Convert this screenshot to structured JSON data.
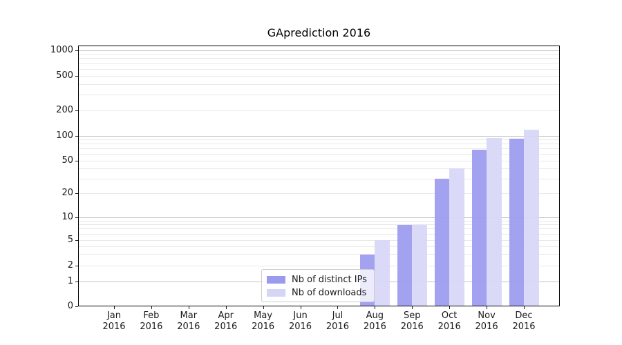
{
  "figure": {
    "background": "#ffffff"
  },
  "chart_data": {
    "type": "bar",
    "title": "GAprediction 2016",
    "x_categories": [
      {
        "month": "Jan",
        "year": "2016"
      },
      {
        "month": "Feb",
        "year": "2016"
      },
      {
        "month": "Mar",
        "year": "2016"
      },
      {
        "month": "Apr",
        "year": "2016"
      },
      {
        "month": "May",
        "year": "2016"
      },
      {
        "month": "Jun",
        "year": "2016"
      },
      {
        "month": "Jul",
        "year": "2016"
      },
      {
        "month": "Aug",
        "year": "2016"
      },
      {
        "month": "Sep",
        "year": "2016"
      },
      {
        "month": "Oct",
        "year": "2016"
      },
      {
        "month": "Nov",
        "year": "2016"
      },
      {
        "month": "Dec",
        "year": "2016"
      }
    ],
    "series": [
      {
        "name": "Nb of distinct IPs",
        "color": "#9b9bef",
        "legend_swatch_color": "#9a9aee",
        "values": [
          0,
          0,
          0,
          0,
          0,
          0,
          0,
          3,
          8,
          30,
          68,
          92
        ]
      },
      {
        "name": "Nb of downloads",
        "color": "#d7d7f8",
        "legend_swatch_color": "#d5d5f5",
        "values": [
          0,
          0,
          0,
          0,
          0,
          0,
          0,
          5,
          8,
          40,
          94,
          118
        ]
      }
    ],
    "y_axis": {
      "scale": "symlog",
      "tick_values": [
        0,
        1,
        2,
        5,
        10,
        20,
        50,
        100,
        200,
        500,
        1000
      ],
      "major_grid_values": [
        1,
        10,
        100,
        1000
      ],
      "minor_grid_values": [
        2,
        3,
        4,
        5,
        6,
        7,
        8,
        9,
        20,
        30,
        40,
        50,
        60,
        70,
        80,
        90,
        200,
        300,
        400,
        500,
        600,
        700,
        800,
        900
      ],
      "ylim": [
        0,
        1000
      ]
    },
    "grid": {
      "orientation": "horizontal",
      "major_color": "#c3c3c3",
      "minor_color": "#e9e9e9"
    },
    "legend": {
      "position": "lower-center-left",
      "entries": [
        "Nb of distinct IPs",
        "Nb of downloads"
      ]
    }
  }
}
